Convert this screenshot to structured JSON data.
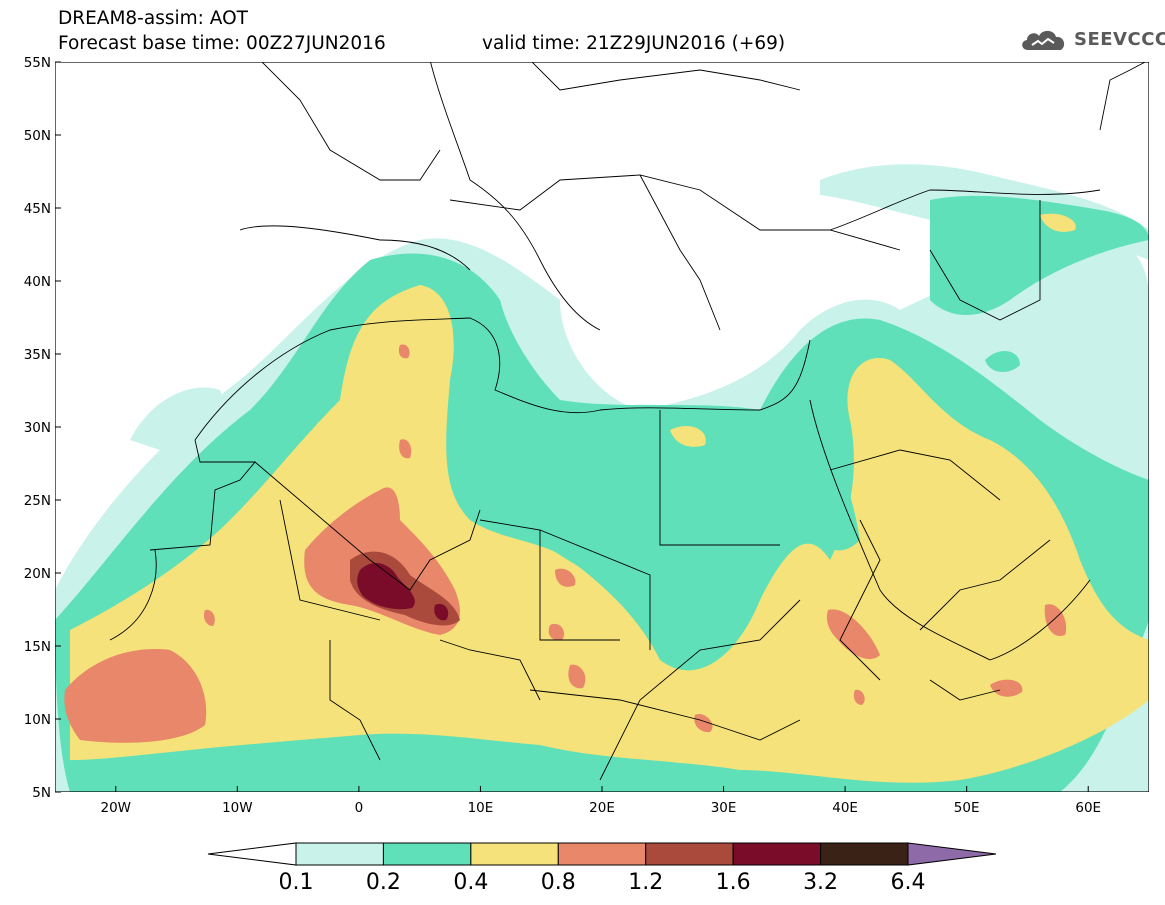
{
  "header": {
    "title": "DREAM8-assim: AOT",
    "base_time": "Forecast base time: 00Z27JUN2016",
    "valid_time": "valid time: 21Z29JUN2016 (+69)",
    "logo_text": "SEEVCCC"
  },
  "axes": {
    "x_ticks": [
      "20W",
      "10W",
      "0",
      "10E",
      "20E",
      "30E",
      "40E",
      "50E",
      "60E"
    ],
    "y_ticks": [
      "55N",
      "50N",
      "45N",
      "40N",
      "35N",
      "30N",
      "25N",
      "20N",
      "15N",
      "10N",
      "5N"
    ],
    "lon_range": [
      -25,
      65
    ],
    "lat_range": [
      5,
      55
    ]
  },
  "colorbar": {
    "labels": [
      "0.1",
      "0.2",
      "0.4",
      "0.8",
      "1.2",
      "1.6",
      "3.2",
      "6.4"
    ],
    "colors": [
      "#ffffff",
      "#c8f2ea",
      "#5fe0b8",
      "#f5e27a",
      "#e8876a",
      "#a94a3d",
      "#7a0c2a",
      "#3a2316",
      "#8e6aa8"
    ]
  },
  "legend_colors": {
    "level_0.1_0.2": "#c8f2ea",
    "level_0.2_0.4": "#5fe0b8",
    "level_0.4_0.8": "#f5e27a",
    "level_0.8_1.2": "#e8876a",
    "level_1.2_1.6": "#a94a3d",
    "level_1.6_3.2": "#7a0c2a"
  }
}
